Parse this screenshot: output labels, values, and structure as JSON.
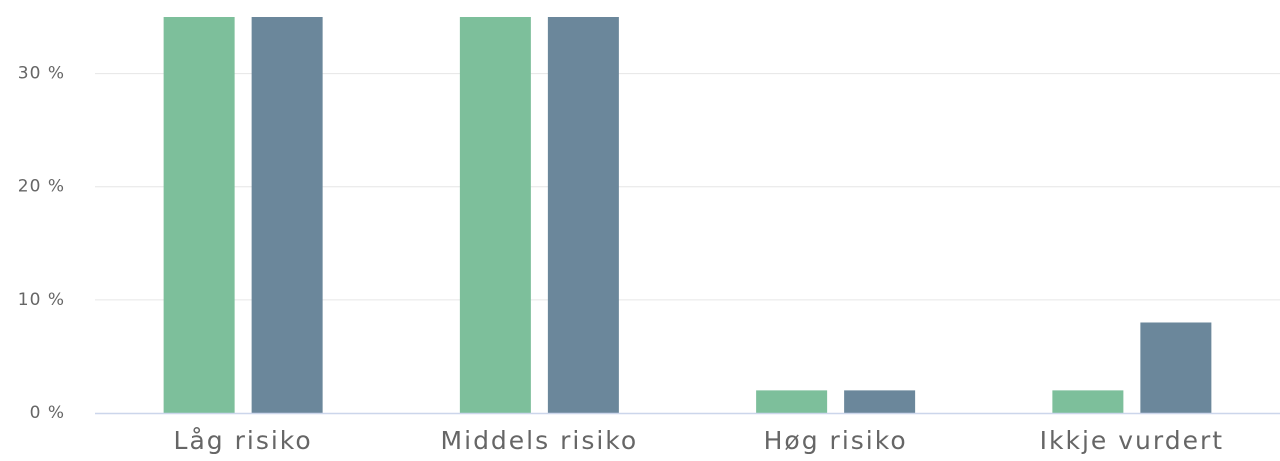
{
  "chart_data": {
    "type": "bar",
    "categories": [
      "Låg risiko",
      "Middels risiko",
      "Høg risiko",
      "Ikkje vurdert"
    ],
    "series": [
      {
        "color": "#7dbf9b",
        "values": [
          35,
          35,
          2,
          2
        ]
      },
      {
        "color": "#6b879b",
        "values": [
          35,
          35,
          2,
          8
        ]
      }
    ],
    "ylim": [
      0,
      35
    ],
    "yticks": [
      {
        "value": 0,
        "label": "0 %"
      },
      {
        "value": 10,
        "label": "10 %"
      },
      {
        "value": 20,
        "label": "20 %"
      },
      {
        "value": 30,
        "label": "30 %"
      }
    ],
    "grid": true
  }
}
